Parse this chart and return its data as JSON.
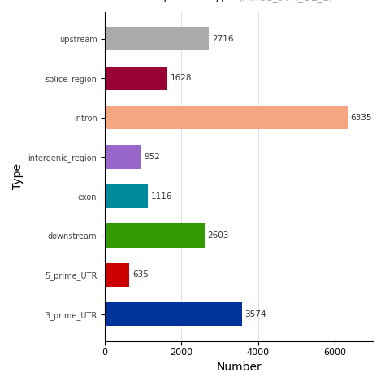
{
  "categories_top_to_bottom": [
    "upstream",
    "splice_region",
    "intron",
    "intergenic_region",
    "exon",
    "downstream",
    "5_prime_UTR",
    "3_prime_UTR"
  ],
  "values_top_to_bottom": [
    2716,
    1628,
    6335,
    952,
    1116,
    2603,
    635,
    3574
  ],
  "colors_top_to_bottom": [
    "#aaaaaa",
    "#990033",
    "#f4a582",
    "#9966cc",
    "#008b9b",
    "#339900",
    "#cc0000",
    "#003399"
  ],
  "xlabel": "Number",
  "ylabel": "Type",
  "xlim": [
    0,
    7000
  ],
  "bar_height": 0.6,
  "figsize": [
    4.74,
    4.74
  ],
  "dpi": 100,
  "background_color": "#ffffff",
  "grid_color": "#e0e0e0"
}
